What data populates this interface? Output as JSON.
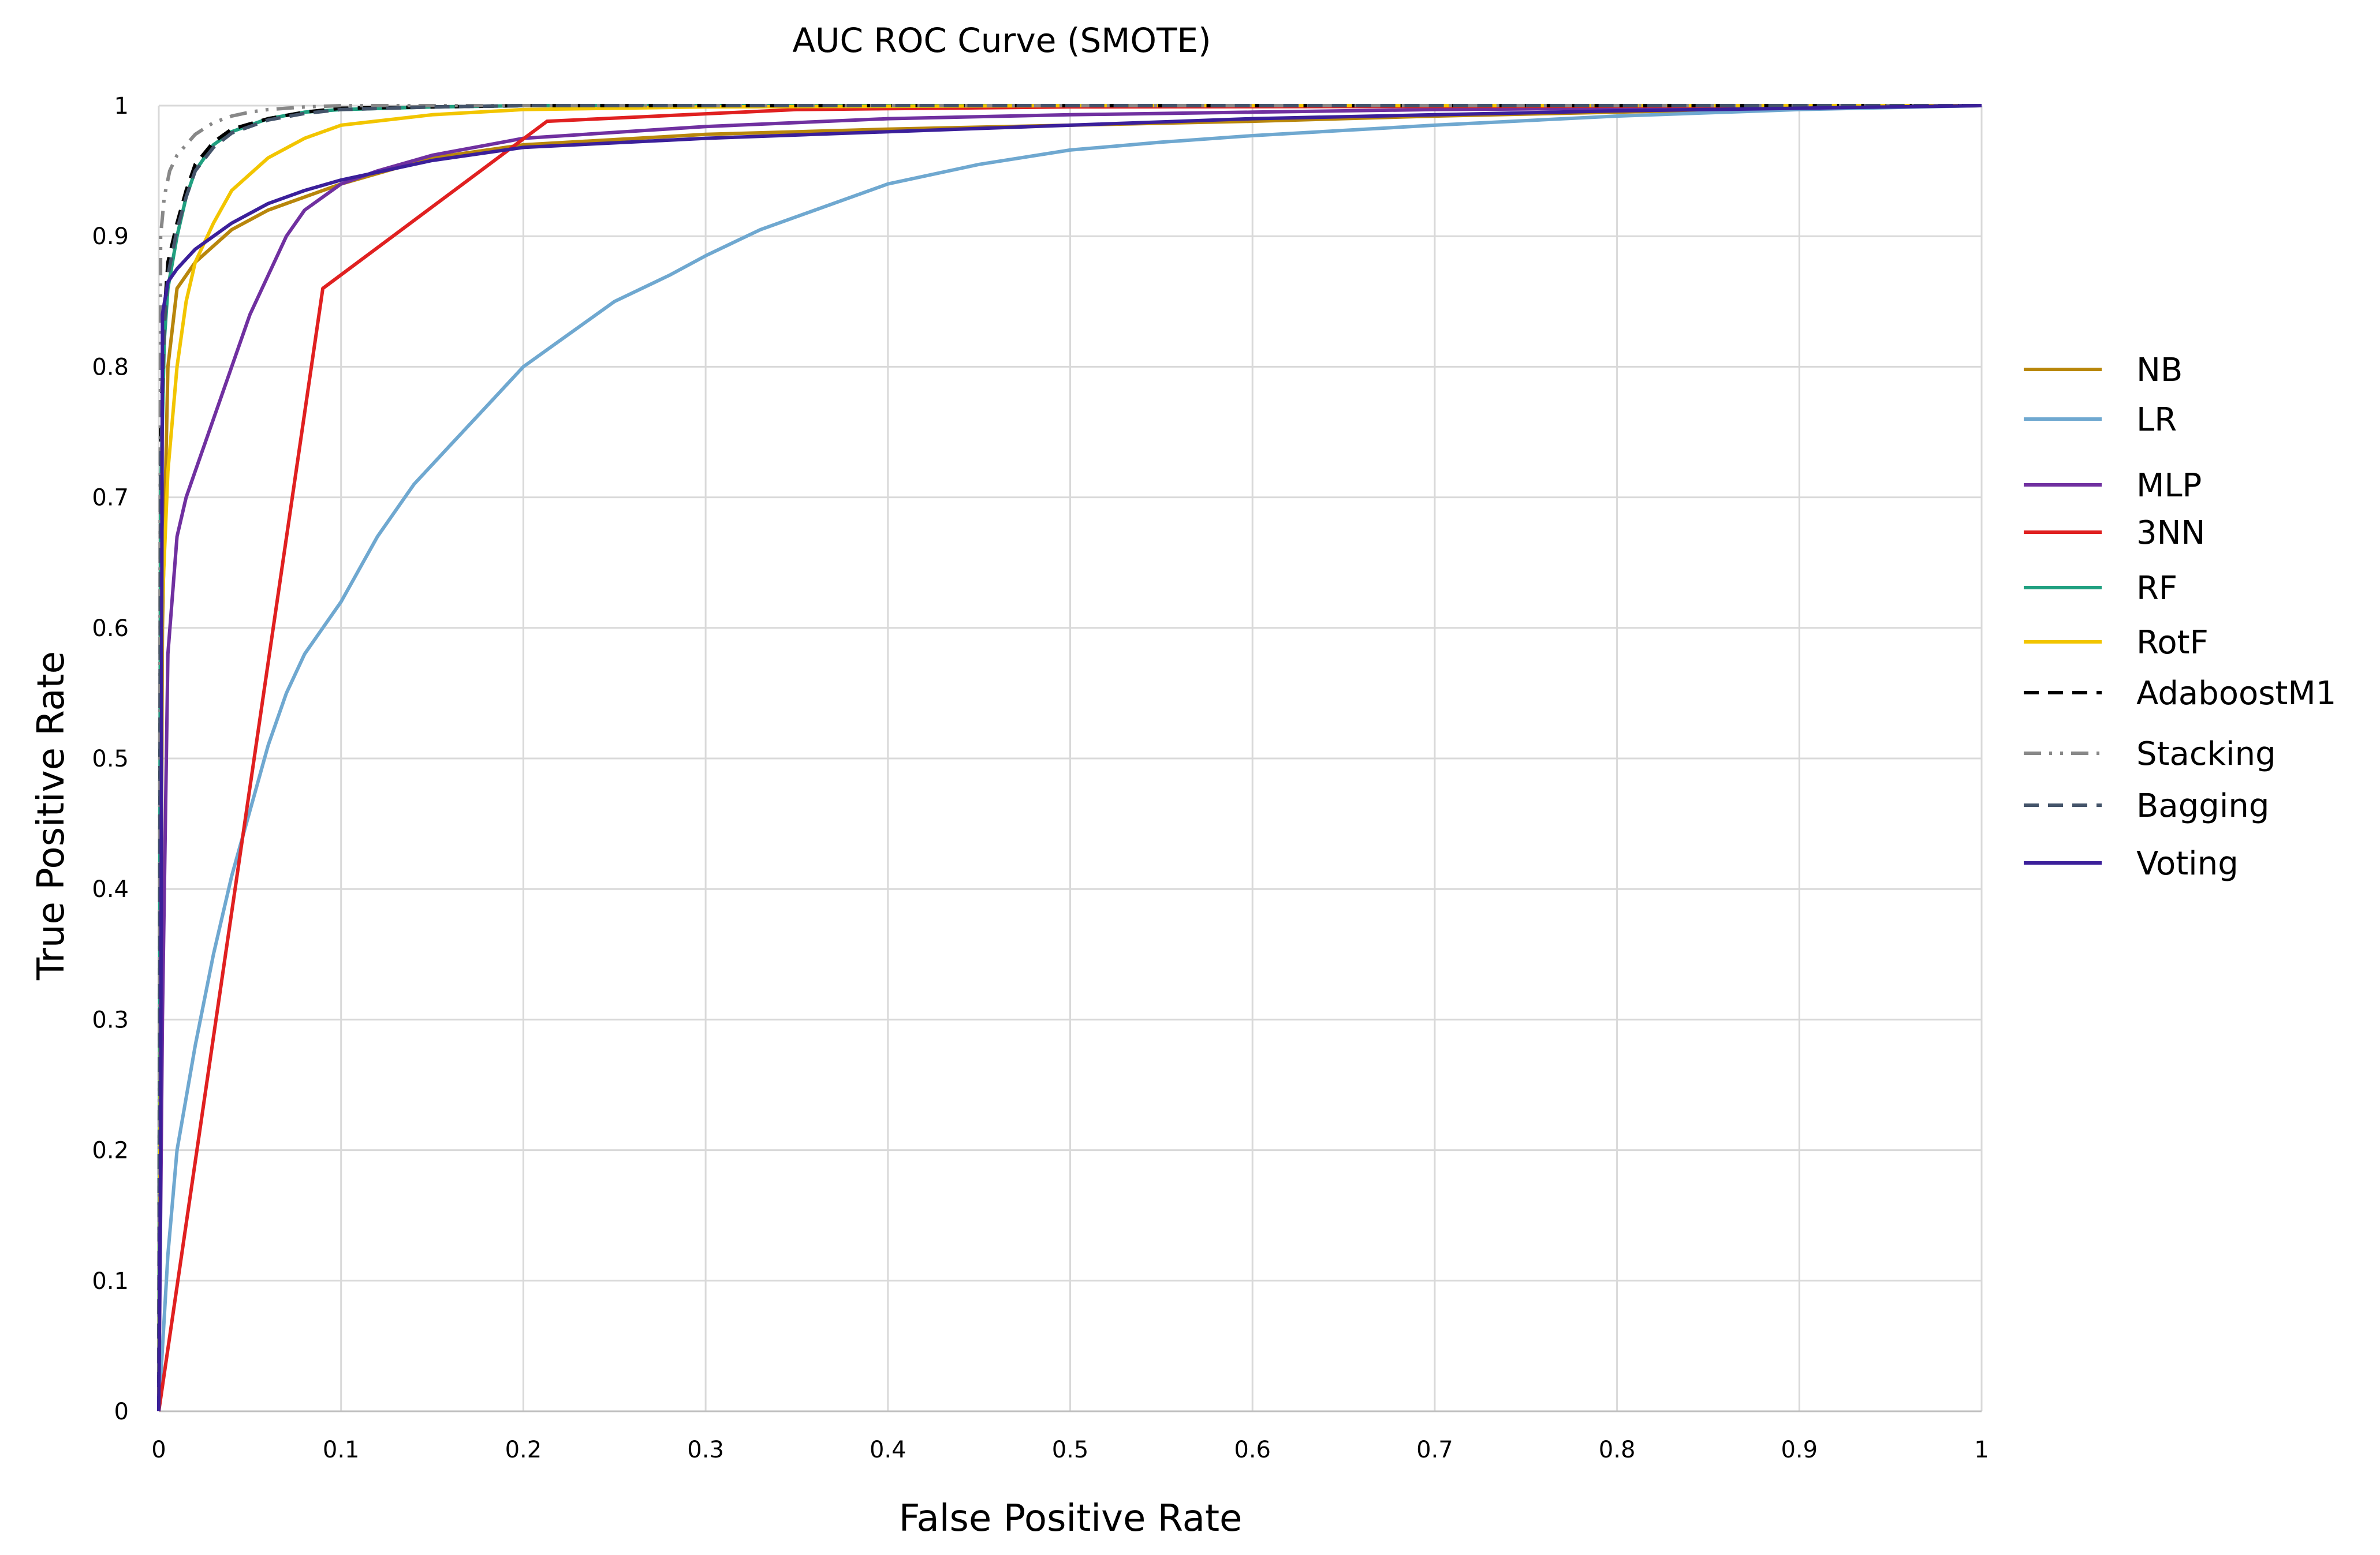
{
  "chart_data": {
    "type": "line",
    "title": "AUC ROC Curve (SMOTE)",
    "xlabel": "False Positive Rate",
    "ylabel": "True Positive Rate",
    "xlim": [
      0,
      1
    ],
    "ylim": [
      0,
      1
    ],
    "x_ticks": [
      "0",
      "0.1",
      "0.2",
      "0.3",
      "0.4",
      "0.5",
      "0.6",
      "0.7",
      "0.8",
      "0.9",
      "1"
    ],
    "y_ticks": [
      "0",
      "0.1",
      "0.2",
      "0.3",
      "0.4",
      "0.5",
      "0.6",
      "0.7",
      "0.8",
      "0.9",
      "1"
    ],
    "grid": true,
    "legend_position": "right",
    "series": [
      {
        "name": "NB",
        "color": "#b8860b",
        "dash": "solid",
        "x": [
          0,
          0.002,
          0.005,
          0.01,
          0.02,
          0.04,
          0.06,
          0.08,
          0.1,
          0.15,
          0.2,
          0.3,
          0.4,
          0.5,
          0.6,
          0.7,
          0.8,
          0.9,
          1
        ],
        "y": [
          0,
          0.6,
          0.8,
          0.86,
          0.88,
          0.905,
          0.92,
          0.93,
          0.94,
          0.96,
          0.97,
          0.978,
          0.982,
          0.985,
          0.988,
          0.992,
          0.995,
          0.998,
          1
        ]
      },
      {
        "name": "LR",
        "color": "#6fa8d0",
        "dash": "solid",
        "x": [
          0,
          0.005,
          0.01,
          0.02,
          0.03,
          0.04,
          0.05,
          0.06,
          0.07,
          0.08,
          0.09,
          0.1,
          0.12,
          0.14,
          0.16,
          0.18,
          0.2,
          0.22,
          0.25,
          0.28,
          0.3,
          0.33,
          0.36,
          0.4,
          0.45,
          0.5,
          0.55,
          0.6,
          0.7,
          0.8,
          0.9,
          1
        ],
        "y": [
          0,
          0.12,
          0.2,
          0.28,
          0.35,
          0.41,
          0.46,
          0.51,
          0.55,
          0.58,
          0.6,
          0.62,
          0.67,
          0.71,
          0.74,
          0.77,
          0.8,
          0.82,
          0.85,
          0.87,
          0.885,
          0.905,
          0.92,
          0.94,
          0.955,
          0.966,
          0.972,
          0.977,
          0.985,
          0.992,
          0.997,
          1
        ]
      },
      {
        "name": "MLP",
        "color": "#7030a0",
        "dash": "solid",
        "x": [
          0,
          0.002,
          0.005,
          0.01,
          0.015,
          0.02,
          0.03,
          0.04,
          0.05,
          0.06,
          0.07,
          0.08,
          0.1,
          0.12,
          0.15,
          0.2,
          0.3,
          0.4,
          0.5,
          0.6,
          0.7,
          0.8,
          0.9,
          1
        ],
        "y": [
          0,
          0.3,
          0.58,
          0.67,
          0.7,
          0.72,
          0.76,
          0.8,
          0.84,
          0.87,
          0.9,
          0.92,
          0.94,
          0.95,
          0.962,
          0.975,
          0.984,
          0.99,
          0.993,
          0.995,
          0.997,
          0.998,
          0.999,
          1
        ]
      },
      {
        "name": "3NN",
        "color": "#e02020",
        "dash": "solid",
        "x": [
          0,
          0.09,
          0.213,
          0.35,
          0.5,
          1
        ],
        "y": [
          0,
          0.86,
          0.988,
          0.997,
          0.999,
          1
        ]
      },
      {
        "name": "RF",
        "color": "#20a080",
        "dash": "solid",
        "x": [
          0,
          0.001,
          0.003,
          0.005,
          0.01,
          0.015,
          0.02,
          0.03,
          0.04,
          0.06,
          0.08,
          0.1,
          0.15,
          0.2,
          0.3,
          0.5,
          1
        ],
        "y": [
          0,
          0.7,
          0.82,
          0.86,
          0.9,
          0.93,
          0.95,
          0.97,
          0.98,
          0.99,
          0.995,
          0.997,
          0.999,
          1,
          1,
          1,
          1
        ]
      },
      {
        "name": "RotF",
        "color": "#f2c500",
        "dash": "solid",
        "x": [
          0,
          0.002,
          0.005,
          0.01,
          0.015,
          0.02,
          0.03,
          0.04,
          0.06,
          0.08,
          0.1,
          0.15,
          0.2,
          0.3,
          0.5,
          1
        ],
        "y": [
          0,
          0.62,
          0.72,
          0.8,
          0.85,
          0.88,
          0.91,
          0.935,
          0.96,
          0.975,
          0.985,
          0.993,
          0.997,
          0.999,
          1,
          1
        ]
      },
      {
        "name": "AdaboostM1",
        "color": "#000000",
        "dash": "dash",
        "x": [
          0,
          0.001,
          0.003,
          0.005,
          0.01,
          0.015,
          0.02,
          0.03,
          0.04,
          0.06,
          0.08,
          0.1,
          0.15,
          0.2,
          0.3,
          0.5,
          1
        ],
        "y": [
          0,
          0.75,
          0.84,
          0.88,
          0.91,
          0.935,
          0.955,
          0.972,
          0.982,
          0.99,
          0.995,
          0.998,
          0.999,
          1,
          1,
          1,
          1
        ]
      },
      {
        "name": "Stacking",
        "color": "#888888",
        "dash": "dashdot",
        "x": [
          0,
          0.001,
          0.003,
          0.006,
          0.01,
          0.02,
          0.03,
          0.04,
          0.05,
          0.06,
          0.08,
          0.1,
          0.2,
          1
        ],
        "y": [
          0,
          0.9,
          0.93,
          0.95,
          0.962,
          0.978,
          0.987,
          0.992,
          0.995,
          0.997,
          0.999,
          1,
          1,
          1
        ]
      },
      {
        "name": "Bagging",
        "color": "#44546a",
        "dash": "dash",
        "x": [
          0,
          0.001,
          0.003,
          0.005,
          0.01,
          0.015,
          0.02,
          0.03,
          0.04,
          0.06,
          0.08,
          0.1,
          0.15,
          0.2,
          0.3,
          1
        ],
        "y": [
          0,
          0.72,
          0.83,
          0.87,
          0.905,
          0.93,
          0.95,
          0.968,
          0.979,
          0.989,
          0.994,
          0.997,
          0.999,
          1,
          1,
          1
        ]
      },
      {
        "name": "Voting",
        "color": "#3b1f9a",
        "dash": "solid",
        "x": [
          0,
          0.001,
          0.002,
          0.005,
          0.01,
          0.02,
          0.04,
          0.06,
          0.08,
          0.1,
          0.15,
          0.2,
          0.3,
          0.4,
          0.5,
          0.6,
          0.7,
          0.8,
          0.9,
          1
        ],
        "y": [
          0,
          0.2,
          0.84,
          0.865,
          0.875,
          0.89,
          0.91,
          0.925,
          0.935,
          0.943,
          0.958,
          0.968,
          0.975,
          0.98,
          0.985,
          0.99,
          0.993,
          0.996,
          0.998,
          1
        ]
      }
    ]
  }
}
